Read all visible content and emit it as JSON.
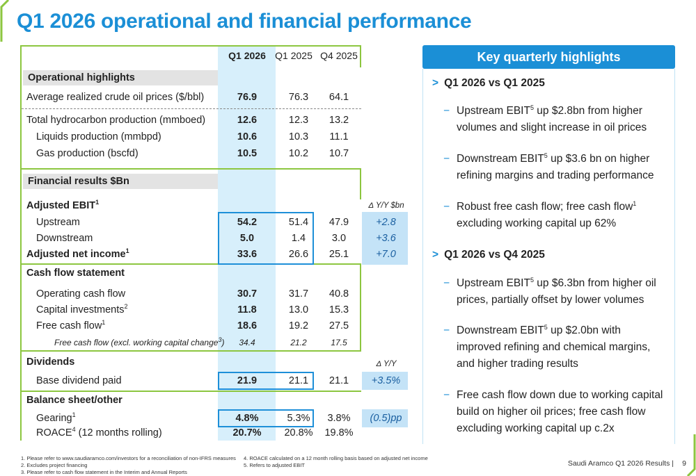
{
  "title": "Q1 2026 operational and financial performance",
  "colors": {
    "accent_blue": "#1b8fd6",
    "accent_green": "#8cc63f",
    "highlight_col": "#d7effb"
  },
  "table": {
    "col_headers": [
      "Q1 2026",
      "Q1 2025",
      "Q4 2025"
    ],
    "sections": {
      "operational": "Operational highlights",
      "financial": "Financial results $Bn",
      "cash": "Cash flow statement",
      "dividends": "Dividends",
      "balance": "Balance sheet/other"
    },
    "rows": {
      "oil_price": {
        "label": "Average realized crude oil prices ($/bbl)",
        "v": [
          "76.9",
          "76.3",
          "64.1"
        ]
      },
      "hydrocarbon": {
        "label": "Total hydrocarbon production (mmboed)",
        "v": [
          "12.6",
          "12.3",
          "13.2"
        ]
      },
      "liquids": {
        "label": "Liquids production (mmbpd)",
        "v": [
          "10.6",
          "10.3",
          "11.1"
        ]
      },
      "gas": {
        "label": "Gas production (bscfd)",
        "v": [
          "10.5",
          "10.2",
          "10.7"
        ]
      },
      "adj_ebit": {
        "label": "Adjusted EBIT",
        "sup": "1"
      },
      "upstream": {
        "label": "Upstream",
        "v": [
          "54.2",
          "51.4",
          "47.9"
        ],
        "delta": "+2.8"
      },
      "downstream": {
        "label": "Downstream",
        "v": [
          "5.0",
          "1.4",
          "3.0"
        ],
        "delta": "+3.6"
      },
      "adj_net": {
        "label": "Adjusted net income",
        "sup": "1",
        "v": [
          "33.6",
          "26.6",
          "25.1"
        ],
        "delta": "+7.0"
      },
      "op_cf": {
        "label": "Operating cash flow",
        "v": [
          "30.7",
          "31.7",
          "40.8"
        ]
      },
      "capex": {
        "label": "Capital investments",
        "sup": "2",
        "v": [
          "11.8",
          "13.0",
          "15.3"
        ]
      },
      "fcf": {
        "label": "Free cash flow",
        "sup": "1",
        "v": [
          "18.6",
          "19.2",
          "27.5"
        ]
      },
      "fcf_ex": {
        "label": "Free cash flow (excl. working capital change",
        "sup": "3",
        "label_end": ")",
        "v": [
          "34.4",
          "21.2",
          "17.5"
        ]
      },
      "dividend": {
        "label": "Base dividend paid",
        "v": [
          "21.9",
          "21.1",
          "21.1"
        ],
        "delta": "+3.5%"
      },
      "gearing": {
        "label": "Gearing",
        "sup": "1",
        "v": [
          "4.8%",
          "5.3%",
          "3.8%"
        ],
        "delta": "(0.5)pp"
      },
      "roace": {
        "label_pre": "ROACE",
        "sup": "4",
        "label": " (12 months rolling)",
        "v": [
          "20.7%",
          "20.8%",
          "19.8%"
        ]
      }
    },
    "delta_headers": {
      "yy_bn": "Δ Y/Y $bn",
      "yy": "Δ Y/Y"
    }
  },
  "highlights": {
    "title": "Key quarterly highlights",
    "groups": [
      {
        "heading": "Q1 2026 vs Q1 2025",
        "items": [
          {
            "pre": "Upstream EBIT",
            "sup": "5",
            "post": " up $2.8bn from higher volumes and slight increase in oil prices"
          },
          {
            "pre": "Downstream EBIT",
            "sup": "5",
            "post": " up $3.6 bn on higher refining margins and trading performance"
          },
          {
            "pre": "Robust free cash flow; free cash flow",
            "sup": "1",
            "post": " excluding working capital up 62%"
          }
        ]
      },
      {
        "heading": "Q1 2026 vs Q4 2025",
        "items": [
          {
            "pre": "Upstream EBIT",
            "sup": "5",
            "post": " up $6.3bn from higher oil prices, partially offset by lower volumes"
          },
          {
            "pre": "Downstream EBIT",
            "sup": "5",
            "post": " up $2.0bn with improved refining and chemical margins, and higher trading results"
          },
          {
            "pre": "Free cash flow down due to working capital build on higher oil prices; free cash flow excluding working capital up c.2x",
            "sup": "",
            "post": ""
          }
        ]
      }
    ]
  },
  "footnotes": [
    "1.  Please refer to www.saudiaramco.com/investors for a reconciliation of non-IFRS measures",
    "2.  Excludes project financing",
    "3.  Please refer to cash flow statement in the Interim and Annual Reports",
    "4.  ROACE calculated on a 12 month rolling basis based on adjusted net income",
    "5.  Refers to adjusted EBIT"
  ],
  "footer": {
    "brand": "Saudi Aramco Q1 2026 Results",
    "separator": "|",
    "page": "9"
  }
}
